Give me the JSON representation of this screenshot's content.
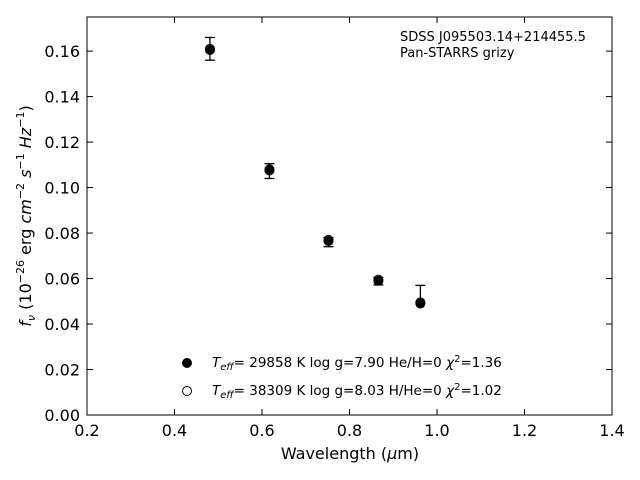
{
  "chart_data": {
    "type": "scatter",
    "title": "",
    "annotation": {
      "line1": "SDSS J095503.14+214455.5",
      "line2": "Pan-STARRS grizy"
    },
    "xlabel": "Wavelength (μm)",
    "ylabel": "f_ν (10^-26 erg cm^-2 s^-1 Hz^-1)",
    "xlim": [
      0.2,
      1.4
    ],
    "ylim": [
      0.0,
      0.175
    ],
    "xticks": [
      0.2,
      0.4,
      0.6,
      0.8,
      1.0,
      1.2,
      1.4
    ],
    "yticks": [
      0.0,
      0.02,
      0.04,
      0.06,
      0.08,
      0.1,
      0.12,
      0.14,
      0.16
    ],
    "xtick_labels": [
      "0.2",
      "0.4",
      "0.6",
      "0.8",
      "1.0",
      "1.2",
      "1.4"
    ],
    "ytick_labels": [
      "0.00",
      "0.02",
      "0.04",
      "0.06",
      "0.08",
      "0.10",
      "0.12",
      "0.14",
      "0.16"
    ],
    "grid": false,
    "legend_position": "bottom-center",
    "observed": {
      "x": [
        0.481,
        0.617,
        0.752,
        0.866,
        0.962
      ],
      "y": [
        0.1605,
        0.1075,
        0.0765,
        0.059,
        0.052
      ],
      "yerr_low": [
        0.0045,
        0.0035,
        0.0025,
        0.0018,
        0.0025
      ],
      "yerr_high": [
        0.0055,
        0.003,
        0.0015,
        0.0015,
        0.005
      ]
    },
    "series": [
      {
        "name": "Teff= 29858 K  log g=7.90  He/H=0  χ2=1.36",
        "marker": "filled-circle",
        "x": [
          0.481,
          0.617,
          0.752,
          0.866,
          0.962
        ],
        "y": [
          0.1605,
          0.108,
          0.0765,
          0.059,
          0.049
        ]
      },
      {
        "name": "Teff= 38309 K  log g=8.03  H/He=0  χ2=1.02",
        "marker": "open-circle",
        "x": [
          0.481,
          0.617,
          0.752,
          0.866,
          0.962
        ],
        "y": [
          0.161,
          0.1075,
          0.077,
          0.0595,
          0.0495
        ]
      }
    ],
    "legend": [
      {
        "teff": "29858",
        "rest1": "= 29858 K  log g=7.90  He/H=0  ",
        "chi": "=1.36"
      },
      {
        "teff": "38309",
        "rest1": "= 38309 K  log g=8.03  H/He=0  ",
        "chi": "=1.02"
      }
    ]
  }
}
